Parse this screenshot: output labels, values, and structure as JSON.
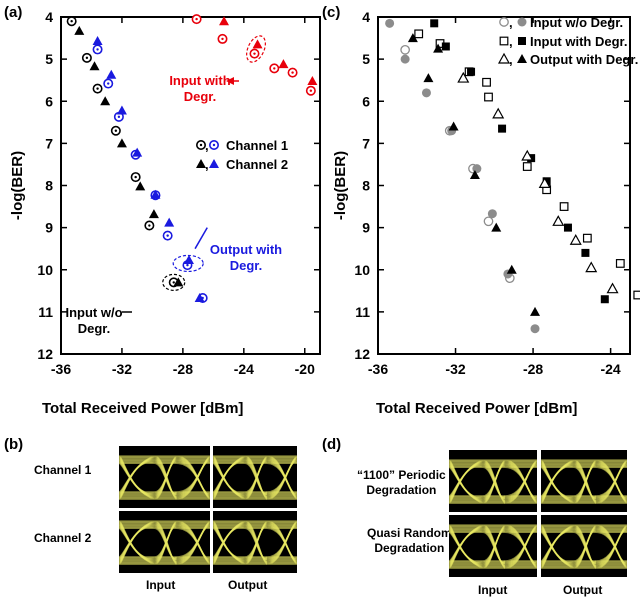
{
  "chart_data": [
    {
      "panel": "(a)",
      "type": "scatter",
      "xlabel": "Total Received Power [dBm]",
      "ylabel": "-log(BER)",
      "xlim": [
        -36,
        -19
      ],
      "ylim": [
        12,
        4
      ],
      "xticks": [
        "-36",
        "-32",
        "-28",
        "-24",
        "-20"
      ],
      "yticks": [
        "4",
        "5",
        "6",
        "7",
        "8",
        "9",
        "10",
        "11",
        "12"
      ],
      "legend": {
        "entries": [
          "Channel 1",
          "Channel 2"
        ],
        "placement": "middle-right",
        "sep": ","
      },
      "annotations": [
        {
          "text": "Input with\nDegr.",
          "color": "#e8000b"
        },
        {
          "text": "Output with\nDegr.",
          "color": "#1a1adf"
        },
        {
          "text": "Input w/o\nDegr.",
          "color": "#000000"
        }
      ],
      "series": [
        {
          "name": "Channel 1",
          "group": "input-no-degr",
          "marker": "ring",
          "color": "#000000",
          "points": [
            [
              -35.3,
              4.1
            ],
            [
              -34.3,
              4.97
            ],
            [
              -33.6,
              5.7
            ],
            [
              -32.4,
              6.7
            ],
            [
              -31.1,
              7.8
            ],
            [
              -30.2,
              8.95
            ],
            [
              -28.6,
              10.3
            ]
          ]
        },
        {
          "name": "Channel 2",
          "group": "input-no-degr",
          "marker": "triangle",
          "color": "#000000",
          "points": [
            [
              -34.8,
              4.33
            ],
            [
              -33.8,
              5.17
            ],
            [
              -33.1,
              6.0
            ],
            [
              -32.0,
              7.0
            ],
            [
              -30.8,
              8.02
            ],
            [
              -29.9,
              8.68
            ],
            [
              -28.3,
              10.3
            ]
          ]
        },
        {
          "name": "Channel 1",
          "group": "output-degr",
          "marker": "ring",
          "color": "#1a1adf",
          "points": [
            [
              -33.6,
              4.77
            ],
            [
              -32.9,
              5.58
            ],
            [
              -32.2,
              6.37
            ],
            [
              -31.1,
              7.27
            ],
            [
              -29.8,
              8.23
            ],
            [
              -29.0,
              9.19
            ],
            [
              -27.7,
              9.89
            ],
            [
              -26.7,
              10.67
            ]
          ]
        },
        {
          "name": "Channel 2",
          "group": "output-degr",
          "marker": "triangle",
          "color": "#1a1adf",
          "points": [
            [
              -33.6,
              4.57
            ],
            [
              -32.7,
              5.37
            ],
            [
              -32.0,
              6.22
            ],
            [
              -31.0,
              7.22
            ],
            [
              -29.8,
              8.22
            ],
            [
              -28.9,
              8.88
            ],
            [
              -27.6,
              9.77
            ],
            [
              -26.9,
              10.67
            ]
          ]
        },
        {
          "name": "Channel 1",
          "group": "input-degr",
          "marker": "ring",
          "color": "#e8000b",
          "points": [
            [
              -27.1,
              4.05
            ],
            [
              -25.4,
              4.52
            ],
            [
              -23.3,
              4.87
            ],
            [
              -22.0,
              5.22
            ],
            [
              -20.8,
              5.32
            ],
            [
              -19.6,
              5.75
            ]
          ]
        },
        {
          "name": "Channel 2",
          "group": "input-degr",
          "marker": "triangle",
          "color": "#e8000b",
          "points": [
            [
              -25.3,
              4.1
            ],
            [
              -23.1,
              4.65
            ],
            [
              -21.4,
              5.12
            ],
            [
              -19.5,
              5.52
            ]
          ]
        }
      ]
    },
    {
      "panel": "(c)",
      "type": "scatter",
      "xlabel": "Total Received Power [dBm]",
      "ylabel": "-log(BER)",
      "xlim": [
        -36,
        -23
      ],
      "ylim": [
        12,
        4
      ],
      "xticks": [
        "-36",
        "-32",
        "-28",
        "-24"
      ],
      "yticks": [
        "4",
        "5",
        "6",
        "7",
        "8",
        "9",
        "10",
        "11",
        "12"
      ],
      "legend": {
        "entries": [
          "Input w/o Degr.",
          "Input with Degr.",
          "Output with Degr."
        ],
        "placement": "top-right",
        "sep": ","
      },
      "series": [
        {
          "name": "Input w/o Degr.",
          "marker": "circle-open",
          "points": [
            [
              -34.6,
              4.78
            ],
            [
              -32.3,
              6.7
            ],
            [
              -31.1,
              7.6
            ],
            [
              -30.3,
              8.85
            ],
            [
              -29.2,
              10.2
            ]
          ]
        },
        {
          "name": "Input w/o Degr.",
          "marker": "circle-filled",
          "points": [
            [
              -35.4,
              4.15
            ],
            [
              -34.6,
              5.0
            ],
            [
              -33.5,
              5.8
            ],
            [
              -32.2,
              6.7
            ],
            [
              -30.9,
              7.6
            ],
            [
              -30.1,
              8.67
            ],
            [
              -29.3,
              10.1
            ],
            [
              -27.9,
              11.4
            ]
          ]
        },
        {
          "name": "Input with Degr.",
          "marker": "square-open",
          "points": [
            [
              -33.9,
              4.4
            ],
            [
              -32.8,
              4.63
            ],
            [
              -31.3,
              5.3
            ],
            [
              -30.4,
              5.55
            ],
            [
              -30.3,
              5.9
            ],
            [
              -28.3,
              7.55
            ],
            [
              -27.3,
              8.1
            ],
            [
              -26.4,
              8.5
            ],
            [
              -25.2,
              9.25
            ],
            [
              -23.5,
              9.85
            ],
            [
              -22.6,
              10.6
            ]
          ]
        },
        {
          "name": "Input with Degr.",
          "marker": "square-filled",
          "points": [
            [
              -33.1,
              4.15
            ],
            [
              -32.5,
              4.7
            ],
            [
              -31.2,
              5.3
            ],
            [
              -29.6,
              6.65
            ],
            [
              -28.1,
              7.35
            ],
            [
              -27.3,
              7.9
            ],
            [
              -26.2,
              9.0
            ],
            [
              -25.3,
              9.6
            ],
            [
              -24.3,
              10.7
            ]
          ]
        },
        {
          "name": "Output with Degr.",
          "marker": "triangle-open",
          "points": [
            [
              -31.6,
              5.45
            ],
            [
              -29.8,
              6.3
            ],
            [
              -28.3,
              7.3
            ],
            [
              -27.4,
              7.95
            ],
            [
              -26.7,
              8.85
            ],
            [
              -25.8,
              9.3
            ],
            [
              -25.0,
              9.95
            ],
            [
              -23.9,
              10.45
            ]
          ]
        },
        {
          "name": "Output with Degr.",
          "marker": "triangle-filled",
          "points": [
            [
              -34.2,
              4.5
            ],
            [
              -32.9,
              4.75
            ],
            [
              -33.4,
              5.45
            ],
            [
              -32.1,
              6.6
            ],
            [
              -31.0,
              7.75
            ],
            [
              -29.9,
              9.0
            ],
            [
              -29.1,
              10.0
            ],
            [
              -27.9,
              11.0
            ]
          ]
        }
      ]
    }
  ],
  "panel_b": {
    "label": "(b)",
    "rows": [
      "Channel 1",
      "Channel 2"
    ],
    "columns": [
      "Input",
      "Output"
    ]
  },
  "panel_d": {
    "label": "(d)",
    "rows": [
      "“1100” Periodic\nDegradation",
      "Quasi Random\nDegradation"
    ],
    "columns": [
      "Input",
      "Output"
    ]
  },
  "colors": {
    "red": "#e8000b",
    "blue": "#1a1adf",
    "black": "#000000",
    "gray": "#8c8c8c",
    "eye_bg": "#000000",
    "eye_trace": "#ecec63"
  }
}
